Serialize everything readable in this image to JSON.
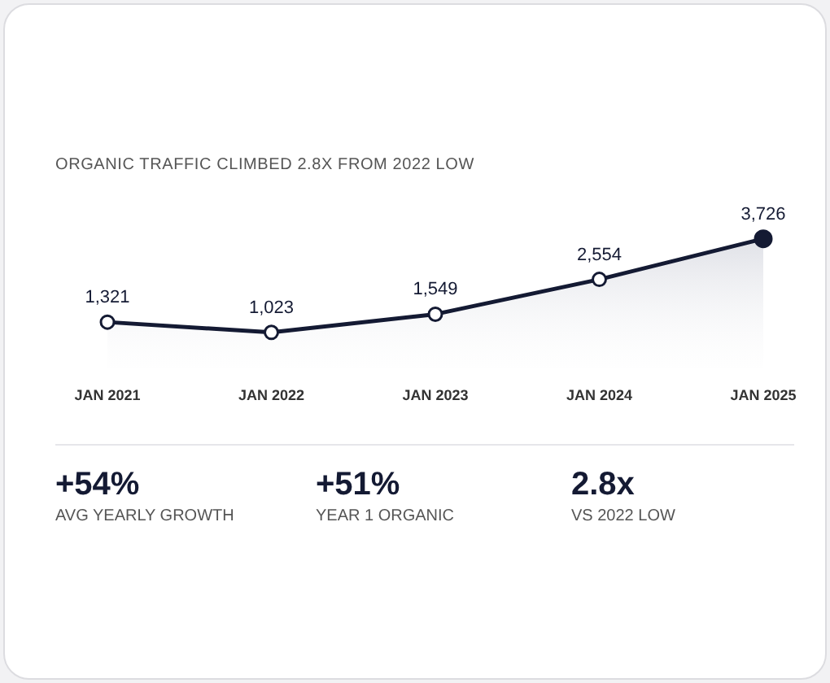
{
  "chart_data": [
    {
      "type": "line",
      "title": "ORGANIC TRAFFIC CLIMBED 2.8X FROM 2022 LOW",
      "categories": [
        "JAN 2021",
        "JAN 2022",
        "JAN 2023",
        "JAN 2024",
        "JAN 2025"
      ],
      "series": [
        {
          "color": "#141a33",
          "values": [
            1321,
            1023,
            1549,
            2554,
            3726
          ],
          "value_labels": [
            "1,321",
            "1,023",
            "1,549",
            "2,554",
            "3,726"
          ]
        }
      ],
      "grid": false,
      "legend": false,
      "marker": "circle",
      "line_style": "solid",
      "tick_labels": "x"
    },
    {
      "type": "other",
      "annotations": [
        "+54%",
        "AVG YEARLY GROWTH",
        "+51%",
        "YEAR 1 ORGANIC",
        "2.8x",
        "VS 2022 LOW"
      ]
    }
  ]
}
